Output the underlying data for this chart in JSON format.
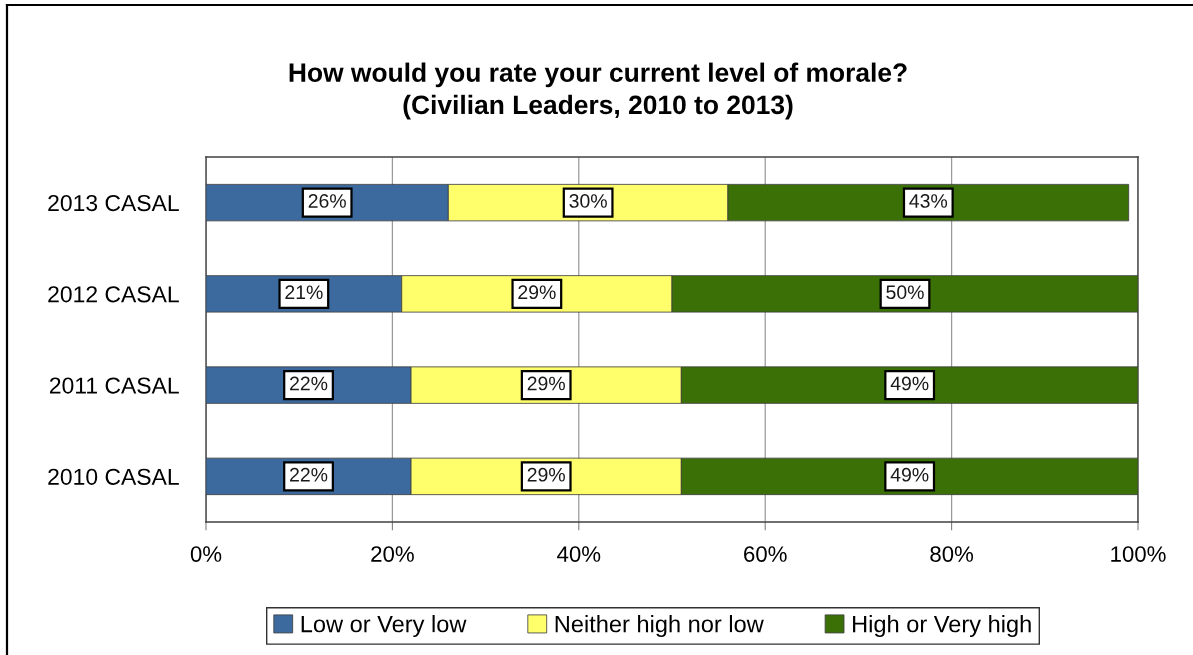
{
  "chart_data": {
    "type": "bar",
    "orientation": "horizontal",
    "stacked": true,
    "title": "How would you rate your current level of morale?\n(Civilian Leaders, 2010 to 2013)",
    "categories": [
      "2013 CASAL",
      "2012 CASAL",
      "2011 CASAL",
      "2010 CASAL"
    ],
    "series": [
      {
        "name": "Low or Very low",
        "color": "#3c6a9e",
        "values": [
          26,
          21,
          22,
          22
        ],
        "value_labels": [
          "26%",
          "21%",
          "22%",
          "22%"
        ]
      },
      {
        "name": "Neither high nor low",
        "color": "#ffff6b",
        "values": [
          30,
          29,
          29,
          29
        ],
        "value_labels": [
          "30%",
          "29%",
          "29%",
          "29%"
        ]
      },
      {
        "name": "High or Very high",
        "color": "#3a7006",
        "values": [
          43,
          50,
          49,
          49
        ],
        "value_labels": [
          "43%",
          "50%",
          "49%",
          "49%"
        ]
      }
    ],
    "xlim": [
      0,
      100
    ],
    "xticks": [
      {
        "value": 0,
        "label": "0%"
      },
      {
        "value": 20,
        "label": "20%"
      },
      {
        "value": 40,
        "label": "40%"
      },
      {
        "value": 60,
        "label": "60%"
      },
      {
        "value": 80,
        "label": "80%"
      },
      {
        "value": 100,
        "label": "100%"
      }
    ],
    "grid": "x",
    "legend": "bottom"
  }
}
